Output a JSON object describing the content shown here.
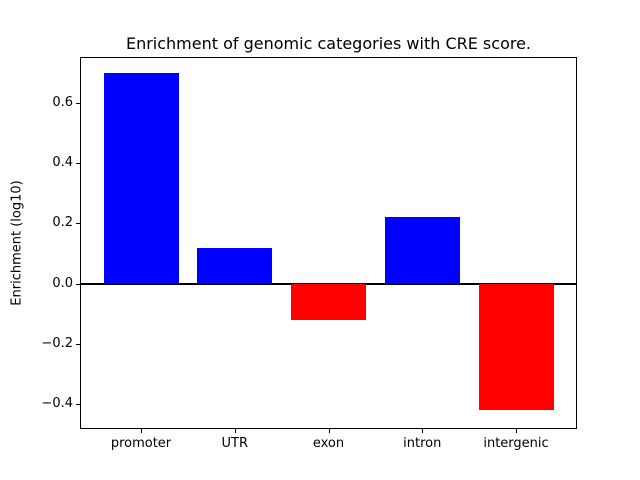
{
  "chart_data": {
    "type": "bar",
    "title": "Enrichment of genomic categories with CRE score.",
    "xlabel": "",
    "ylabel": "Enrichment (log10)",
    "categories": [
      "promoter",
      "UTR",
      "exon",
      "intron",
      "intergenic"
    ],
    "values": [
      0.7,
      0.12,
      -0.12,
      0.22,
      -0.42
    ],
    "bar_width": 0.8,
    "positive_color": "#0000ff",
    "negative_color": "#ff0000",
    "baseline": 0,
    "baseline_color": "#000000",
    "yticks": [
      0.6,
      0.4,
      0.2,
      0.0,
      -0.2,
      -0.4
    ],
    "ytick_labels": [
      "0.6",
      "0.4",
      "0.2",
      "0.0",
      "−0.2",
      "−0.4"
    ],
    "ylim": [
      -0.48,
      0.75
    ],
    "xlim": [
      -0.64,
      4.64
    ],
    "grid": false,
    "legend": null,
    "background_color": "#ffffff"
  }
}
